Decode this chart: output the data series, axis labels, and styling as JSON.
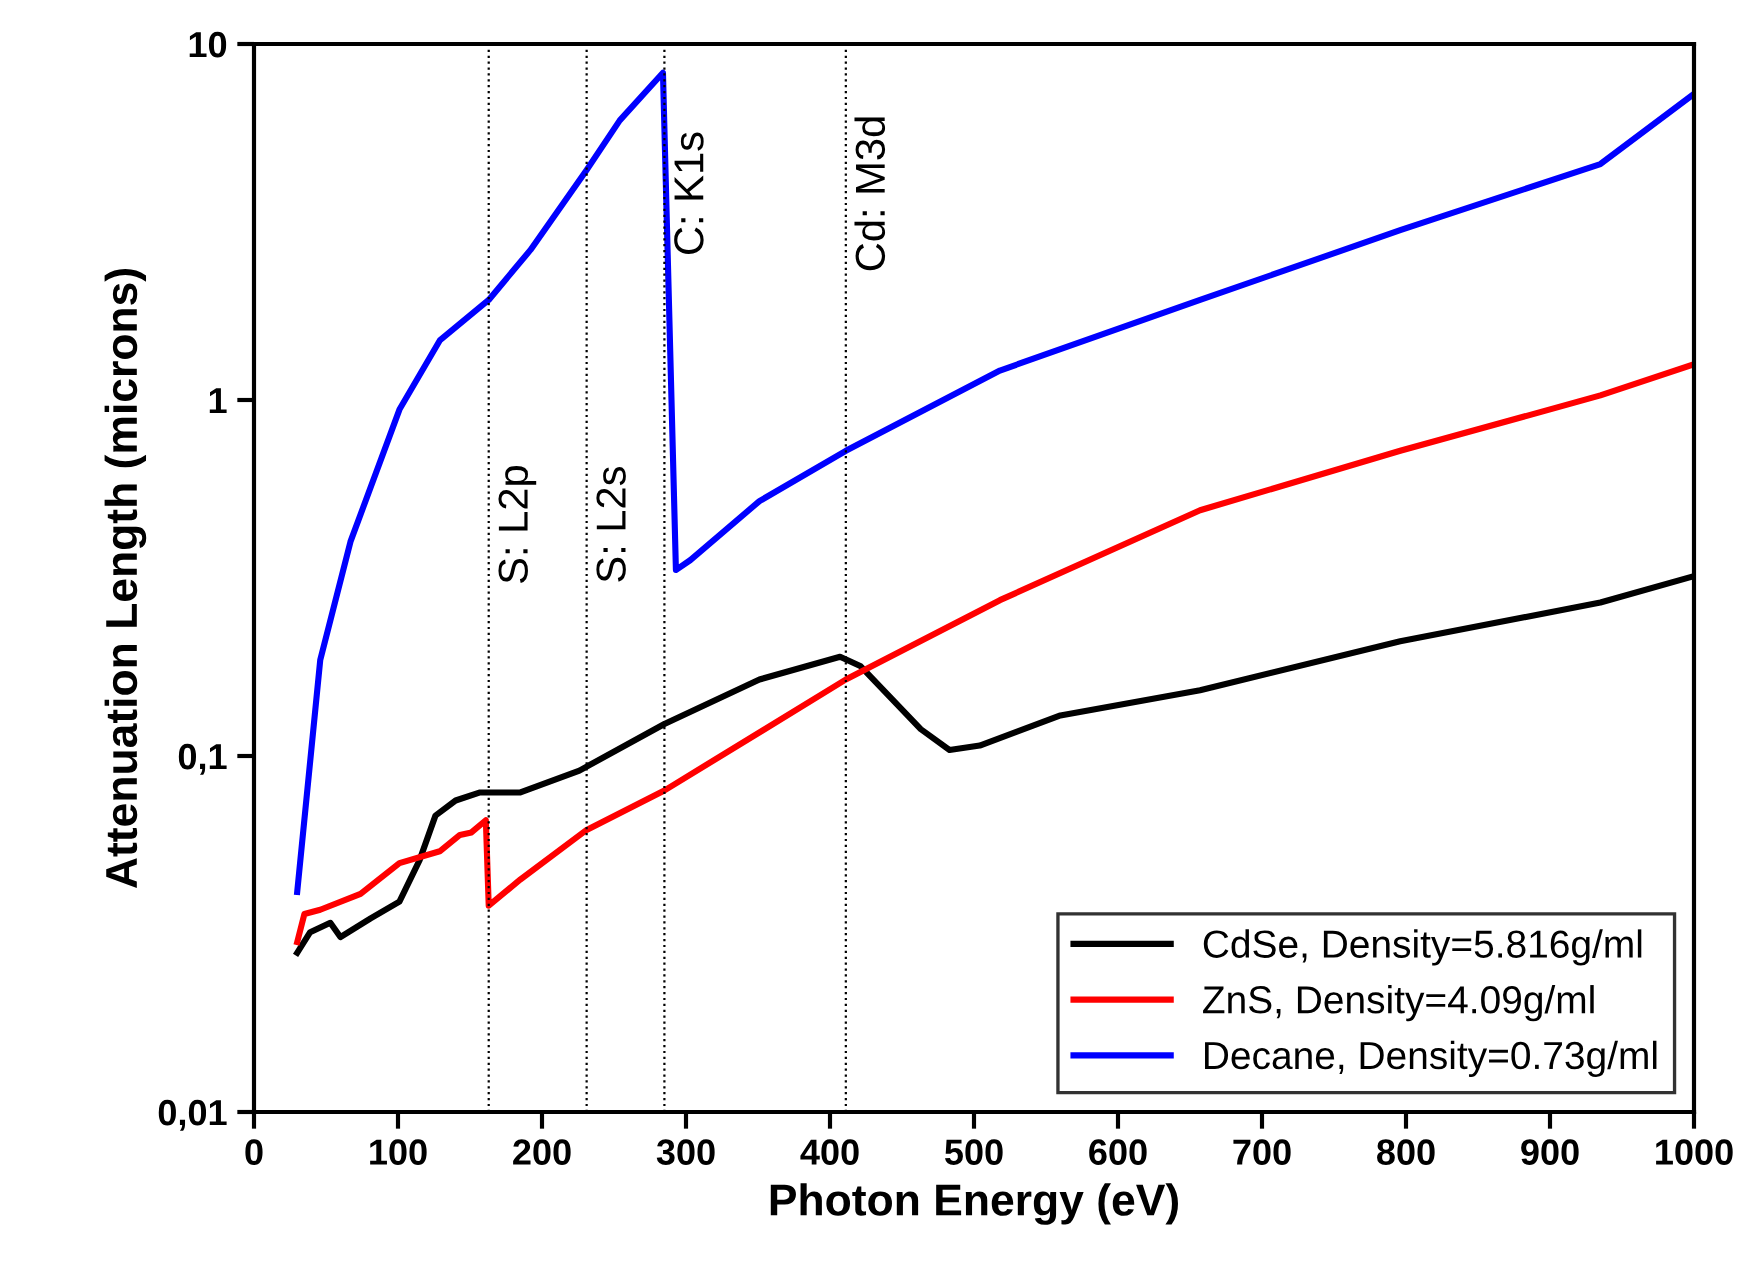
{
  "chart_data": {
    "type": "line",
    "xlabel": "Photon Energy (eV)",
    "ylabel": "Attenuation Length (microns)",
    "log": "y",
    "xlim": [
      0,
      1000
    ],
    "xticks": [
      0,
      100,
      200,
      300,
      400,
      500,
      600,
      700,
      800,
      900,
      1000
    ],
    "ylim": [
      0.01,
      10
    ],
    "yticks": [
      {
        "value": 0.01,
        "label": "0,01"
      },
      {
        "value": 0.1,
        "label": "0,1"
      },
      1,
      10
    ],
    "grid": false,
    "legend": "bottom right",
    "line_style": "solid",
    "marker": "none",
    "ref_lines": [
      {
        "axis": "x",
        "value": 163,
        "label": "S: L2p",
        "line_style": "dotted",
        "color": "#000000"
      },
      {
        "axis": "x",
        "value": 231,
        "label": "S: L2s",
        "line_style": "dotted",
        "color": "#000000"
      },
      {
        "axis": "x",
        "value": 285,
        "label": "C: K1s",
        "line_style": "dotted",
        "color": "#000000"
      },
      {
        "axis": "x",
        "value": 411,
        "label": "Cd: M3d",
        "line_style": "dotted",
        "color": "#000000"
      }
    ],
    "series": [
      {
        "name": "CdSe, Density=5.816g/ml",
        "color": "#000000",
        "x": [
          30,
          39,
          53,
          60,
          81,
          101,
          115,
          126,
          140,
          157,
          185,
          226,
          285,
          351,
          407,
          421,
          463,
          483,
          504,
          560,
          657,
          796,
          935,
          1000
        ],
        "values": [
          0.028,
          0.032,
          0.034,
          0.031,
          0.035,
          0.039,
          0.051,
          0.068,
          0.075,
          0.079,
          0.079,
          0.091,
          0.123,
          0.164,
          0.19,
          0.179,
          0.119,
          0.104,
          0.107,
          0.13,
          0.153,
          0.21,
          0.27,
          0.32
        ]
      },
      {
        "name": "ZnS, Density=4.09g/ml",
        "color": "#ff0000",
        "x": [
          30,
          35,
          46,
          74,
          101,
          129,
          143,
          151,
          161,
          163,
          185,
          231,
          285,
          411,
          518,
          657,
          796,
          935,
          1000
        ],
        "values": [
          0.03,
          0.036,
          0.037,
          0.041,
          0.05,
          0.054,
          0.06,
          0.061,
          0.066,
          0.038,
          0.045,
          0.062,
          0.08,
          0.164,
          0.274,
          0.49,
          0.72,
          1.03,
          1.26
        ]
      },
      {
        "name": "Decane, Density=0.73g/ml",
        "color": "#0000ff",
        "x": [
          30,
          46,
          67,
          101,
          129,
          163,
          192,
          231,
          254,
          284,
          293,
          303,
          351,
          411,
          518,
          657,
          796,
          935,
          1000
        ],
        "values": [
          0.0415,
          0.186,
          0.4,
          0.94,
          1.47,
          1.91,
          2.64,
          4.43,
          6.1,
          8.3,
          0.333,
          0.355,
          0.52,
          0.72,
          1.21,
          1.91,
          3.0,
          4.6,
          7.24
        ]
      }
    ]
  }
}
